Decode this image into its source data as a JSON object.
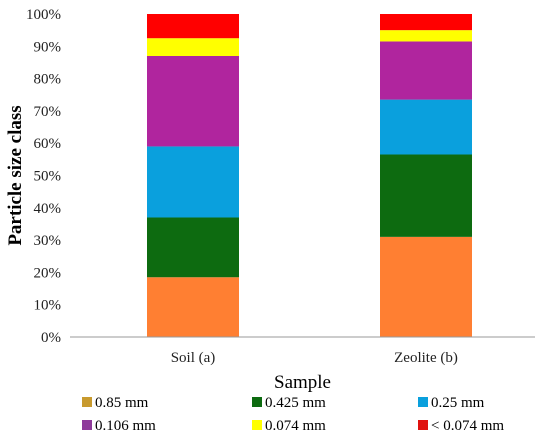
{
  "chart_data": {
    "type": "bar",
    "stacked": true,
    "percent": true,
    "categories": [
      "Soil (a)",
      "Zeolite (b)"
    ],
    "xlabel": "Sample",
    "ylabel": "Particle size class",
    "ylim": [
      0,
      100
    ],
    "yticks": [
      "0%",
      "10%",
      "20%",
      "30%",
      "40%",
      "50%",
      "60%",
      "70%",
      "80%",
      "90%",
      "100%"
    ],
    "grid": false,
    "legend_position": "bottom",
    "series": [
      {
        "name": "0.85 mm",
        "values": [
          18.5,
          31
        ],
        "color": "#FF7F32",
        "legend_color": "#C89A2E"
      },
      {
        "name": "0.425 mm",
        "values": [
          18.5,
          25.5
        ],
        "color": "#0D6B10",
        "legend_color": "#0D6B10"
      },
      {
        "name": "0.25 mm",
        "values": [
          22,
          17
        ],
        "color": "#0AA0DD",
        "legend_color": "#0AA0DD"
      },
      {
        "name": "0.106 mm",
        "values": [
          28,
          18
        ],
        "color": "#B0259E",
        "legend_color": "#8E3A9A"
      },
      {
        "name": "0.074 mm",
        "values": [
          5.5,
          3.5
        ],
        "color": "#FFFF00",
        "legend_color": "#FFFF00"
      },
      {
        "name": "< 0.074 mm",
        "values": [
          7.5,
          5
        ],
        "color": "#FF0000",
        "legend_color": "#E0120F"
      }
    ]
  }
}
